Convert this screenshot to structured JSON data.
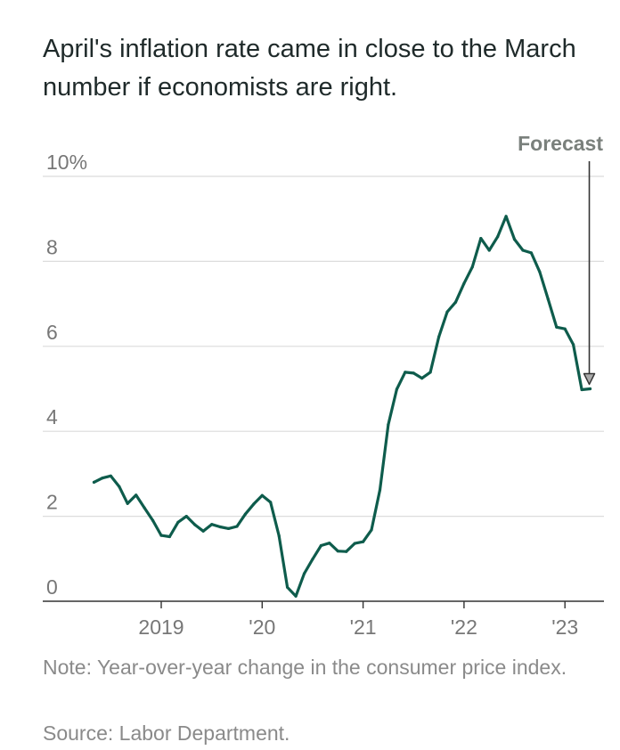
{
  "chart_data": {
    "type": "line",
    "title": "April's inflation rate came in close to the March number if economists are right.",
    "yticks": [
      {
        "value": 10,
        "label": "10%"
      },
      {
        "value": 8,
        "label": "8"
      },
      {
        "value": 6,
        "label": "6"
      },
      {
        "value": 4,
        "label": "4"
      },
      {
        "value": 2,
        "label": "2"
      },
      {
        "value": 0,
        "label": "0"
      }
    ],
    "xticks": [
      {
        "value": "2019-01",
        "label": "2019"
      },
      {
        "value": "2020-01",
        "label": "'20"
      },
      {
        "value": "2021-01",
        "label": "'21"
      },
      {
        "value": "2022-01",
        "label": "'22"
      },
      {
        "value": "2023-01",
        "label": "'23"
      }
    ],
    "xlim": [
      "2018-01",
      "2023-06"
    ],
    "ylim": [
      0,
      10
    ],
    "grid": true,
    "line_color": "#0e5c4c",
    "series": [
      {
        "values": [
          {
            "x": "2018-05",
            "y": 2.8
          },
          {
            "x": "2018-06",
            "y": 2.9
          },
          {
            "x": "2018-07",
            "y": 2.95
          },
          {
            "x": "2018-08",
            "y": 2.7
          },
          {
            "x": "2018-09",
            "y": 2.3
          },
          {
            "x": "2018-10",
            "y": 2.5
          },
          {
            "x": "2018-11",
            "y": 2.2
          },
          {
            "x": "2018-12",
            "y": 1.9
          },
          {
            "x": "2019-01",
            "y": 1.55
          },
          {
            "x": "2019-02",
            "y": 1.52
          },
          {
            "x": "2019-03",
            "y": 1.86
          },
          {
            "x": "2019-04",
            "y": 2.0
          },
          {
            "x": "2019-05",
            "y": 1.8
          },
          {
            "x": "2019-06",
            "y": 1.65
          },
          {
            "x": "2019-07",
            "y": 1.81
          },
          {
            "x": "2019-08",
            "y": 1.75
          },
          {
            "x": "2019-09",
            "y": 1.71
          },
          {
            "x": "2019-10",
            "y": 1.76
          },
          {
            "x": "2019-11",
            "y": 2.05
          },
          {
            "x": "2019-12",
            "y": 2.29
          },
          {
            "x": "2020-01",
            "y": 2.49
          },
          {
            "x": "2020-02",
            "y": 2.33
          },
          {
            "x": "2020-03",
            "y": 1.54
          },
          {
            "x": "2020-04",
            "y": 0.33
          },
          {
            "x": "2020-05",
            "y": 0.12
          },
          {
            "x": "2020-06",
            "y": 0.65
          },
          {
            "x": "2020-07",
            "y": 0.99
          },
          {
            "x": "2020-08",
            "y": 1.31
          },
          {
            "x": "2020-09",
            "y": 1.37
          },
          {
            "x": "2020-10",
            "y": 1.18
          },
          {
            "x": "2020-11",
            "y": 1.17
          },
          {
            "x": "2020-12",
            "y": 1.36
          },
          {
            "x": "2021-01",
            "y": 1.4
          },
          {
            "x": "2021-02",
            "y": 1.68
          },
          {
            "x": "2021-03",
            "y": 2.62
          },
          {
            "x": "2021-04",
            "y": 4.16
          },
          {
            "x": "2021-05",
            "y": 4.99
          },
          {
            "x": "2021-06",
            "y": 5.39
          },
          {
            "x": "2021-07",
            "y": 5.37
          },
          {
            "x": "2021-08",
            "y": 5.25
          },
          {
            "x": "2021-09",
            "y": 5.39
          },
          {
            "x": "2021-10",
            "y": 6.22
          },
          {
            "x": "2021-11",
            "y": 6.81
          },
          {
            "x": "2021-12",
            "y": 7.04
          },
          {
            "x": "2022-01",
            "y": 7.48
          },
          {
            "x": "2022-02",
            "y": 7.87
          },
          {
            "x": "2022-03",
            "y": 8.54
          },
          {
            "x": "2022-04",
            "y": 8.26
          },
          {
            "x": "2022-05",
            "y": 8.58
          },
          {
            "x": "2022-06",
            "y": 9.06
          },
          {
            "x": "2022-07",
            "y": 8.52
          },
          {
            "x": "2022-08",
            "y": 8.26
          },
          {
            "x": "2022-09",
            "y": 8.2
          },
          {
            "x": "2022-10",
            "y": 7.75
          },
          {
            "x": "2022-11",
            "y": 7.11
          },
          {
            "x": "2022-12",
            "y": 6.45
          },
          {
            "x": "2023-01",
            "y": 6.41
          },
          {
            "x": "2023-02",
            "y": 6.04
          },
          {
            "x": "2023-03",
            "y": 4.98
          },
          {
            "x": "2023-04",
            "y": 5.0
          }
        ]
      }
    ],
    "annotation": {
      "label": "Forecast",
      "x": "2023-04",
      "y": 5.0
    }
  },
  "note": "Note: Year-over-year change in the consumer price index.",
  "source": "Source: Labor Department."
}
